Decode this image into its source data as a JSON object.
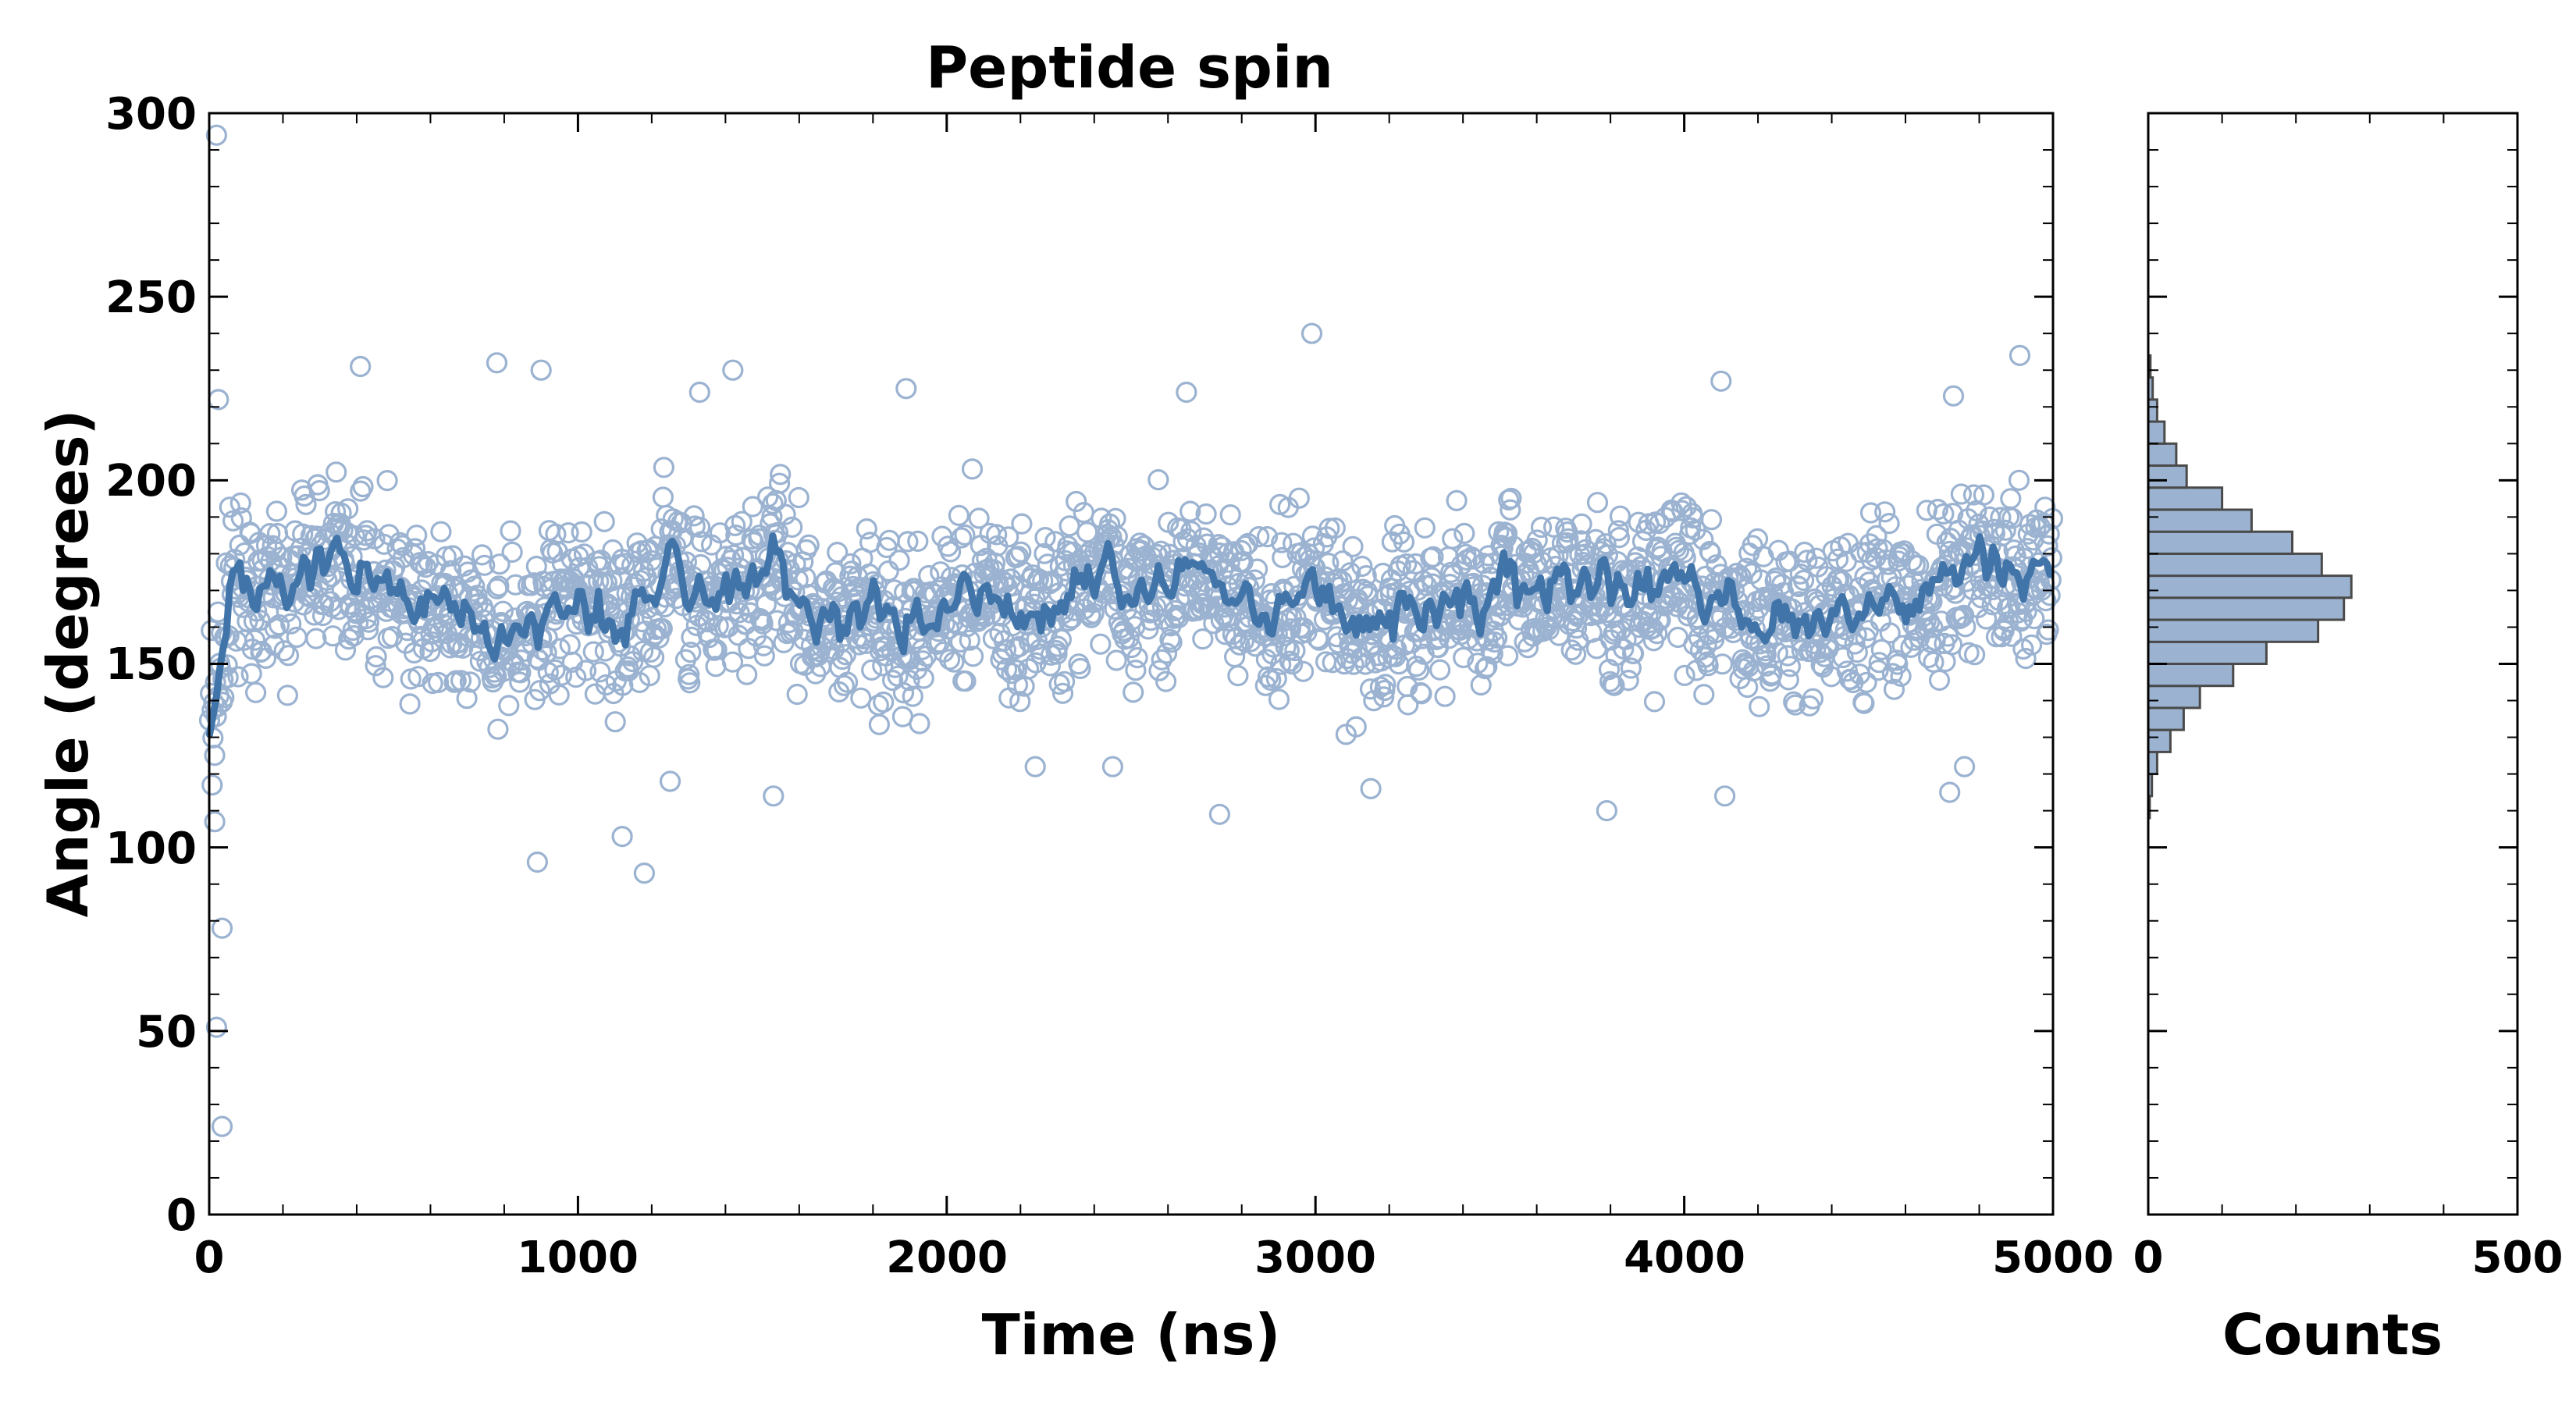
{
  "chart_data": [
    {
      "type": "scatter",
      "title": "Peptide spin",
      "xlabel": "Time (ns)",
      "ylabel": "Angle (degrees)",
      "xlim": [
        0,
        5000
      ],
      "ylim": [
        0,
        300
      ],
      "xticks": [
        "0",
        "1000",
        "2000",
        "3000",
        "4000",
        "5000"
      ],
      "yticks": [
        "0",
        "50",
        "100",
        "150",
        "200",
        "250",
        "300"
      ],
      "grid": false,
      "colors": {
        "points": "#9bb3d1",
        "line": "#4174a8"
      },
      "outliers": [
        {
          "x": 20,
          "y": 294
        },
        {
          "x": 25,
          "y": 222
        },
        {
          "x": 35,
          "y": 78
        },
        {
          "x": 20,
          "y": 51
        },
        {
          "x": 35,
          "y": 24
        },
        {
          "x": 15,
          "y": 107
        },
        {
          "x": 8,
          "y": 117
        },
        {
          "x": 410,
          "y": 231
        },
        {
          "x": 780,
          "y": 232
        },
        {
          "x": 900,
          "y": 230
        },
        {
          "x": 1420,
          "y": 230
        },
        {
          "x": 2990,
          "y": 240
        },
        {
          "x": 4910,
          "y": 234
        },
        {
          "x": 4100,
          "y": 227
        },
        {
          "x": 1330,
          "y": 224
        },
        {
          "x": 1890,
          "y": 225
        },
        {
          "x": 2650,
          "y": 224
        },
        {
          "x": 4730,
          "y": 223
        },
        {
          "x": 890,
          "y": 96
        },
        {
          "x": 1120,
          "y": 103
        },
        {
          "x": 1180,
          "y": 93
        },
        {
          "x": 2740,
          "y": 109
        },
        {
          "x": 3790,
          "y": 110
        },
        {
          "x": 4110,
          "y": 114
        },
        {
          "x": 1530,
          "y": 114
        },
        {
          "x": 1250,
          "y": 118
        },
        {
          "x": 4720,
          "y": 115
        },
        {
          "x": 4760,
          "y": 122
        },
        {
          "x": 3150,
          "y": 116
        },
        {
          "x": 2450,
          "y": 122
        },
        {
          "x": 2240,
          "y": 122
        }
      ]
    },
    {
      "type": "bar",
      "orientation": "horizontal",
      "xlabel": "Counts",
      "xlim": [
        0,
        500
      ],
      "xticks": [
        "0",
        "500"
      ],
      "color": "#9bb3d1",
      "edge_color": "#4a4a4a",
      "bin_width": 6,
      "bins": [
        {
          "y0": 108,
          "count": 2
        },
        {
          "y0": 114,
          "count": 5
        },
        {
          "y0": 120,
          "count": 12
        },
        {
          "y0": 126,
          "count": 30
        },
        {
          "y0": 132,
          "count": 48
        },
        {
          "y0": 138,
          "count": 70
        },
        {
          "y0": 144,
          "count": 115
        },
        {
          "y0": 150,
          "count": 160
        },
        {
          "y0": 156,
          "count": 230
        },
        {
          "y0": 162,
          "count": 265
        },
        {
          "y0": 168,
          "count": 275
        },
        {
          "y0": 174,
          "count": 235
        },
        {
          "y0": 180,
          "count": 195
        },
        {
          "y0": 186,
          "count": 140
        },
        {
          "y0": 192,
          "count": 100
        },
        {
          "y0": 198,
          "count": 52
        },
        {
          "y0": 204,
          "count": 38
        },
        {
          "y0": 210,
          "count": 22
        },
        {
          "y0": 216,
          "count": 12
        },
        {
          "y0": 222,
          "count": 6
        },
        {
          "y0": 228,
          "count": 3
        }
      ]
    }
  ]
}
